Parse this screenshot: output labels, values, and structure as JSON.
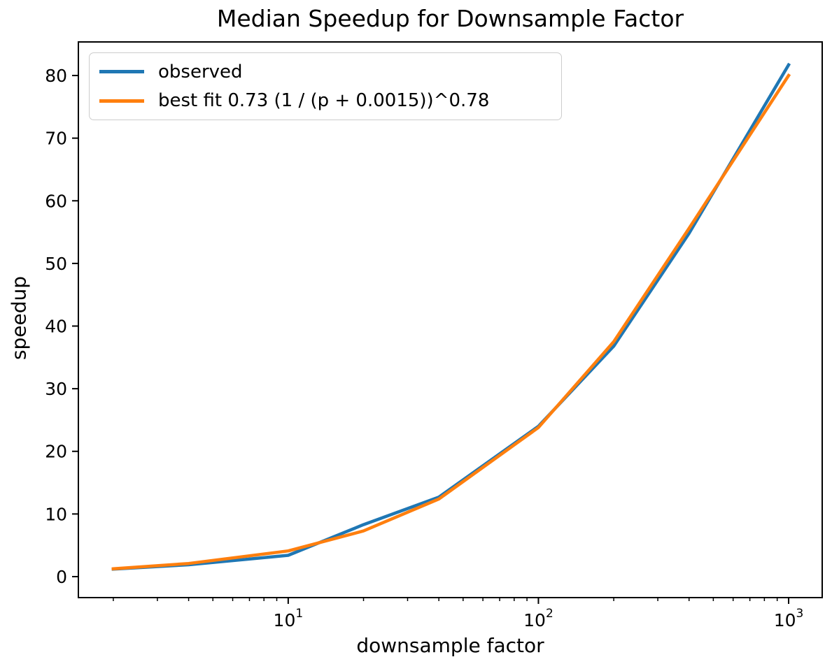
{
  "chart_data": {
    "type": "line",
    "title": "Median Speedup for Downsample Factor",
    "xlabel": "downsample factor",
    "ylabel": "speedup",
    "x_scale": "log",
    "xlim": [
      1.45,
      1362
    ],
    "ylim": [
      -3.35,
      85.36
    ],
    "x": [
      2,
      4,
      10,
      20,
      40,
      100,
      200,
      400,
      1000
    ],
    "series": [
      {
        "name": "observed",
        "color": "#1f77b4",
        "values": [
          1.2,
          1.9,
          3.4,
          8.3,
          12.7,
          24.0,
          36.8,
          54.8,
          81.7
        ]
      },
      {
        "name": "best fit 0.73 (1 / (p + 0.0015))^0.78",
        "color": "#ff7f0e",
        "values": [
          1.25,
          2.1,
          4.1,
          7.3,
          12.4,
          23.8,
          37.5,
          55.6,
          80.0
        ]
      }
    ],
    "y_ticks": [
      0,
      10,
      20,
      30,
      40,
      50,
      60,
      70,
      80
    ],
    "x_major_ticks": [
      10,
      100,
      1000
    ],
    "x_major_tick_labels": [
      "10¹",
      "10²",
      "10³"
    ],
    "legend_position": "upper left",
    "grid": false,
    "frame_color": "#000000",
    "legend_border_color": "#cccccc"
  }
}
